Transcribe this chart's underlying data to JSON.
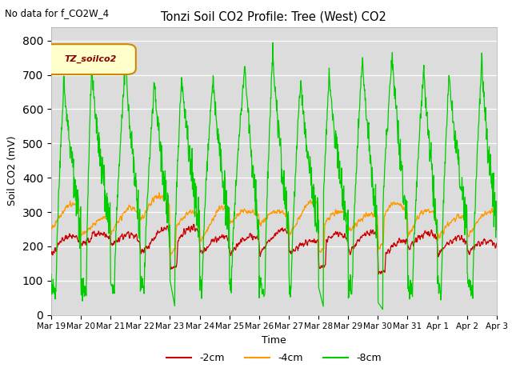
{
  "title": "Tonzi Soil CO2 Profile: Tree (West) CO2",
  "subtitle": "No data for f_CO2W_4",
  "ylabel": "Soil CO2 (mV)",
  "xlabel": "Time",
  "legend_label": "TZ_soilco2",
  "xlabels": [
    "Mar 19",
    "Mar 20",
    "Mar 21",
    "Mar 22",
    "Mar 23",
    "Mar 24",
    "Mar 25",
    "Mar 26",
    "Mar 27",
    "Mar 28",
    "Mar 29",
    "Mar 30",
    "Mar 31",
    "Apr 1",
    "Apr 2",
    "Apr 3"
  ],
  "ylim": [
    0,
    840
  ],
  "yticks": [
    0,
    100,
    200,
    300,
    400,
    500,
    600,
    700,
    800
  ],
  "color_2cm": "#cc0000",
  "color_4cm": "#ff9900",
  "color_8cm": "#00cc00",
  "bg_color": "#dcdcdc",
  "fig_bg": "#ffffff",
  "n_days": 15,
  "pts_per_day": 96
}
